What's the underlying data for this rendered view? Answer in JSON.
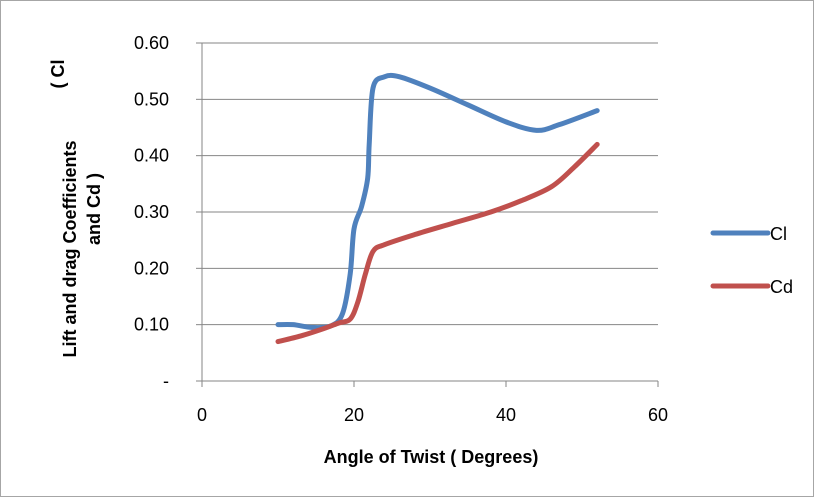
{
  "chart_data": {
    "type": "line",
    "xlabel": "Angle of Twist ( Degrees)",
    "ylabel_lines": [
      "( Cl",
      "Lift and drag Coefficients",
      "and Cd )"
    ],
    "xlim": [
      0,
      60
    ],
    "ylim": [
      0,
      0.6
    ],
    "x_ticks": [
      0,
      20,
      40,
      60
    ],
    "x_tick_labels": [
      "0",
      "20",
      "40",
      "60"
    ],
    "y_ticks": [
      0,
      0.1,
      0.2,
      0.3,
      0.4,
      0.5,
      0.6
    ],
    "y_tick_labels": [
      "-",
      "0.10",
      "0.20",
      "0.30",
      "0.40",
      "0.50",
      "0.60"
    ],
    "grid": "horizontal",
    "legend_position": "right",
    "series": [
      {
        "name": "Cl",
        "color": "#4f81bd",
        "x": [
          10,
          12,
          14.5,
          17,
          18.5,
          19.5,
          20,
          21,
          21.8,
          22,
          22.5,
          24,
          26,
          30,
          35,
          40,
          44,
          47,
          52
        ],
        "y": [
          0.1,
          0.1,
          0.095,
          0.098,
          0.12,
          0.19,
          0.27,
          0.31,
          0.36,
          0.42,
          0.52,
          0.54,
          0.54,
          0.52,
          0.49,
          0.46,
          0.445,
          0.455,
          0.48
        ]
      },
      {
        "name": "Cd",
        "color": "#c0504d",
        "x": [
          10,
          13,
          16,
          18,
          19.5,
          20.5,
          21.5,
          22.5,
          24,
          28,
          33,
          38,
          42,
          46,
          49,
          52
        ],
        "y": [
          0.07,
          0.08,
          0.093,
          0.103,
          0.11,
          0.14,
          0.19,
          0.23,
          0.242,
          0.26,
          0.28,
          0.3,
          0.32,
          0.345,
          0.38,
          0.42
        ]
      }
    ]
  }
}
